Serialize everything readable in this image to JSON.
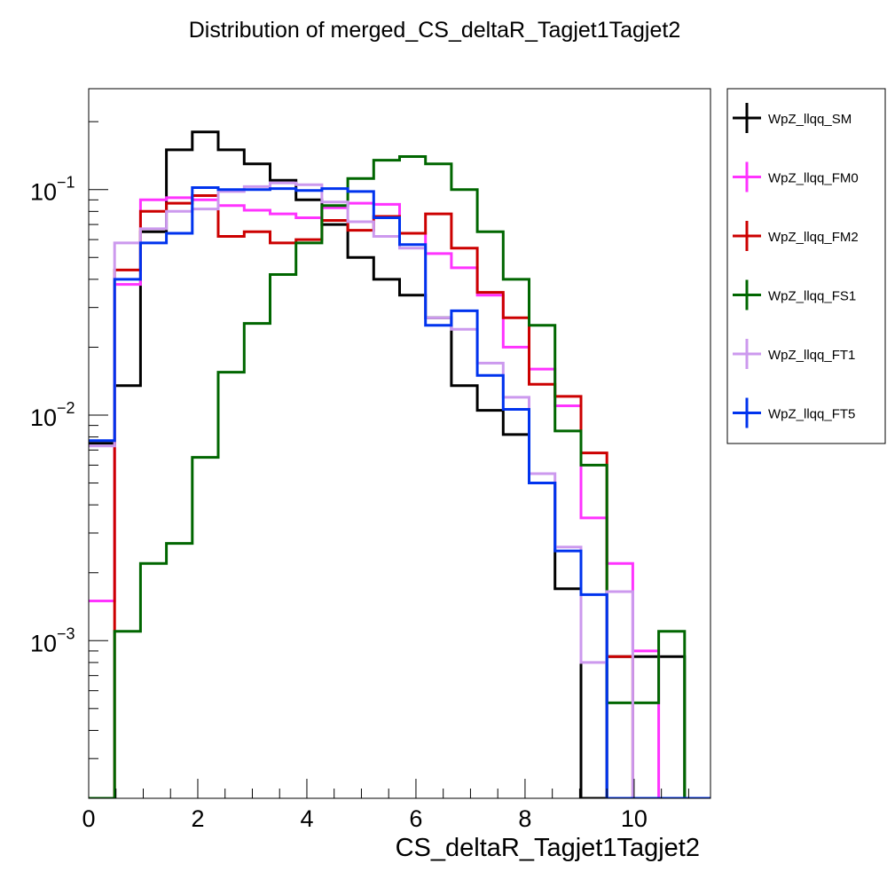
{
  "chart_data": {
    "type": "line",
    "title": "Distribution of merged_CS_deltaR_Tagjet1Tagjet2",
    "xlabel": "CS_deltaR_Tagjet1Tagjet2",
    "ylabel": "",
    "xlim": [
      0,
      11.4
    ],
    "ylim": [
      0.0002,
      0.28
    ],
    "yscale": "log",
    "grid": false,
    "legend_position": "right",
    "bin_width": 0.475,
    "x_ticks": [
      {
        "value": 0,
        "label": "0"
      },
      {
        "value": 2,
        "label": "2"
      },
      {
        "value": 4,
        "label": "4"
      },
      {
        "value": 6,
        "label": "6"
      },
      {
        "value": 8,
        "label": "8"
      },
      {
        "value": 10,
        "label": "10"
      }
    ],
    "y_ticks": [
      {
        "value": 0.1,
        "base": "10",
        "exponent": "−1"
      },
      {
        "value": 0.01,
        "base": "10",
        "exponent": "−2"
      },
      {
        "value": 0.001,
        "base": "10",
        "exponent": "−3"
      }
    ],
    "series": [
      {
        "name": "WpZ_llqq_SM",
        "color": "#000000",
        "values": [
          0.0075,
          0.0135,
          0.065,
          0.15,
          0.18,
          0.15,
          0.13,
          0.11,
          0.09,
          0.07,
          0.05,
          0.04,
          0.034,
          0.027,
          0.0135,
          0.0105,
          0.0082,
          0.005,
          0.0017,
          0.0002,
          0.00085,
          0.00085,
          0.00085,
          0.0002
        ]
      },
      {
        "name": "WpZ_llqq_FM0",
        "color": "#ff33ff",
        "values": [
          0.0015,
          0.038,
          0.09,
          0.092,
          0.09,
          0.085,
          0.081,
          0.078,
          0.075,
          0.083,
          0.087,
          0.086,
          0.064,
          0.052,
          0.045,
          0.034,
          0.02,
          0.016,
          0.011,
          0.0035,
          0.0022,
          0.0009,
          0.0002,
          0.0002
        ]
      },
      {
        "name": "WpZ_llqq_FM2",
        "color": "#cc0000",
        "values": [
          0.0002,
          0.044,
          0.08,
          0.087,
          0.094,
          0.062,
          0.065,
          0.058,
          0.06,
          0.073,
          0.066,
          0.076,
          0.064,
          0.078,
          0.055,
          0.035,
          0.027,
          0.0137,
          0.0121,
          0.0068,
          0.00085,
          0.0002,
          0.0002,
          0.0002
        ]
      },
      {
        "name": "WpZ_llqq_FS1",
        "color": "#006600",
        "values": [
          0.0002,
          0.0011,
          0.0022,
          0.0027,
          0.0065,
          0.0155,
          0.0255,
          0.042,
          0.058,
          0.085,
          0.112,
          0.135,
          0.14,
          0.13,
          0.1,
          0.065,
          0.04,
          0.025,
          0.0085,
          0.006,
          0.00053,
          0.00053,
          0.0011,
          0.0002
        ]
      },
      {
        "name": "WpZ_llqq_FT1",
        "color": "#cc99ee",
        "values": [
          0.0073,
          0.058,
          0.067,
          0.08,
          0.082,
          0.098,
          0.103,
          0.107,
          0.105,
          0.088,
          0.072,
          0.062,
          0.055,
          0.027,
          0.024,
          0.017,
          0.012,
          0.0055,
          0.0026,
          0.0008,
          0.00165,
          0.0002,
          0.0002,
          0.0002
        ]
      },
      {
        "name": "WpZ_llqq_FT5",
        "color": "#0033ee",
        "values": [
          0.0077,
          0.04,
          0.058,
          0.064,
          0.102,
          0.1,
          0.1,
          0.101,
          0.099,
          0.101,
          0.098,
          0.075,
          0.057,
          0.025,
          0.029,
          0.015,
          0.0106,
          0.005,
          0.0025,
          0.0016,
          0.0002,
          0.0002,
          0.0002,
          0.0002
        ]
      }
    ]
  }
}
